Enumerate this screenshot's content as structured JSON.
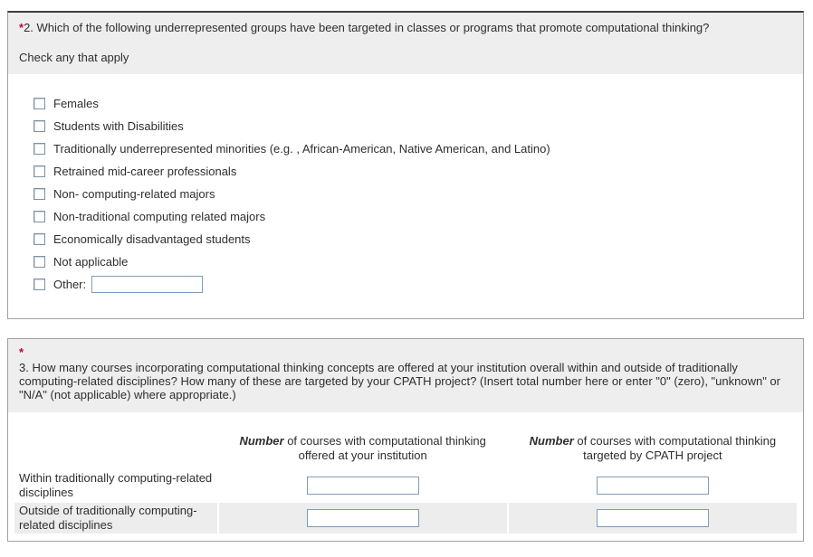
{
  "colors": {
    "panel_border": "#a2a2a2",
    "panel_top_border": "#3c3c3c",
    "header_bg": "#eeeeee",
    "alt_row_bg": "#ededed",
    "required_red": "#cc0033",
    "input_border": "#7f9db9",
    "text": "#2e2e2e"
  },
  "question2": {
    "required_marker": "*",
    "title": "2. Which of the following underrepresented groups have been targeted in classes or programs that promote computational thinking?",
    "instruction": "Check any that apply",
    "options": [
      {
        "label": "Females",
        "checked": false
      },
      {
        "label": "Students with Disabilities",
        "checked": false
      },
      {
        "label": "Traditionally underrepresented minorities (e.g. , African-American, Native American, and Latino)",
        "checked": false
      },
      {
        "label": "Retrained mid-career professionals",
        "checked": false
      },
      {
        "label": "Non- computing-related majors",
        "checked": false
      },
      {
        "label": "Non-traditional computing related majors",
        "checked": false
      },
      {
        "label": "Economically disadvantaged students",
        "checked": false
      },
      {
        "label": "Not applicable",
        "checked": false
      },
      {
        "label": "Other:",
        "checked": false
      }
    ],
    "other_input": {
      "value": "",
      "placeholder": ""
    }
  },
  "question3": {
    "required_marker": "*",
    "title": "3. How many courses incorporating computational thinking concepts are offered at your institution overall within and outside of traditionally computing-related disciplines? How many of these are targeted by your CPATH project? (Insert total number here or enter \"0\" (zero), \"unknown\" or \"N/A\" (not applicable) where appropriate.)",
    "columns": [
      {
        "emphasis": "Number",
        "rest": " of courses with computational thinking offered at your institution"
      },
      {
        "emphasis": "Number",
        "rest": " of courses with computational thinking targeted by CPATH project"
      }
    ],
    "rows": [
      {
        "label": "Within traditionally computing-related disciplines",
        "inputs": [
          {
            "value": ""
          },
          {
            "value": ""
          }
        ]
      },
      {
        "label": "Outside of traditionally computing-related disciplines",
        "inputs": [
          {
            "value": ""
          },
          {
            "value": ""
          }
        ]
      }
    ]
  }
}
